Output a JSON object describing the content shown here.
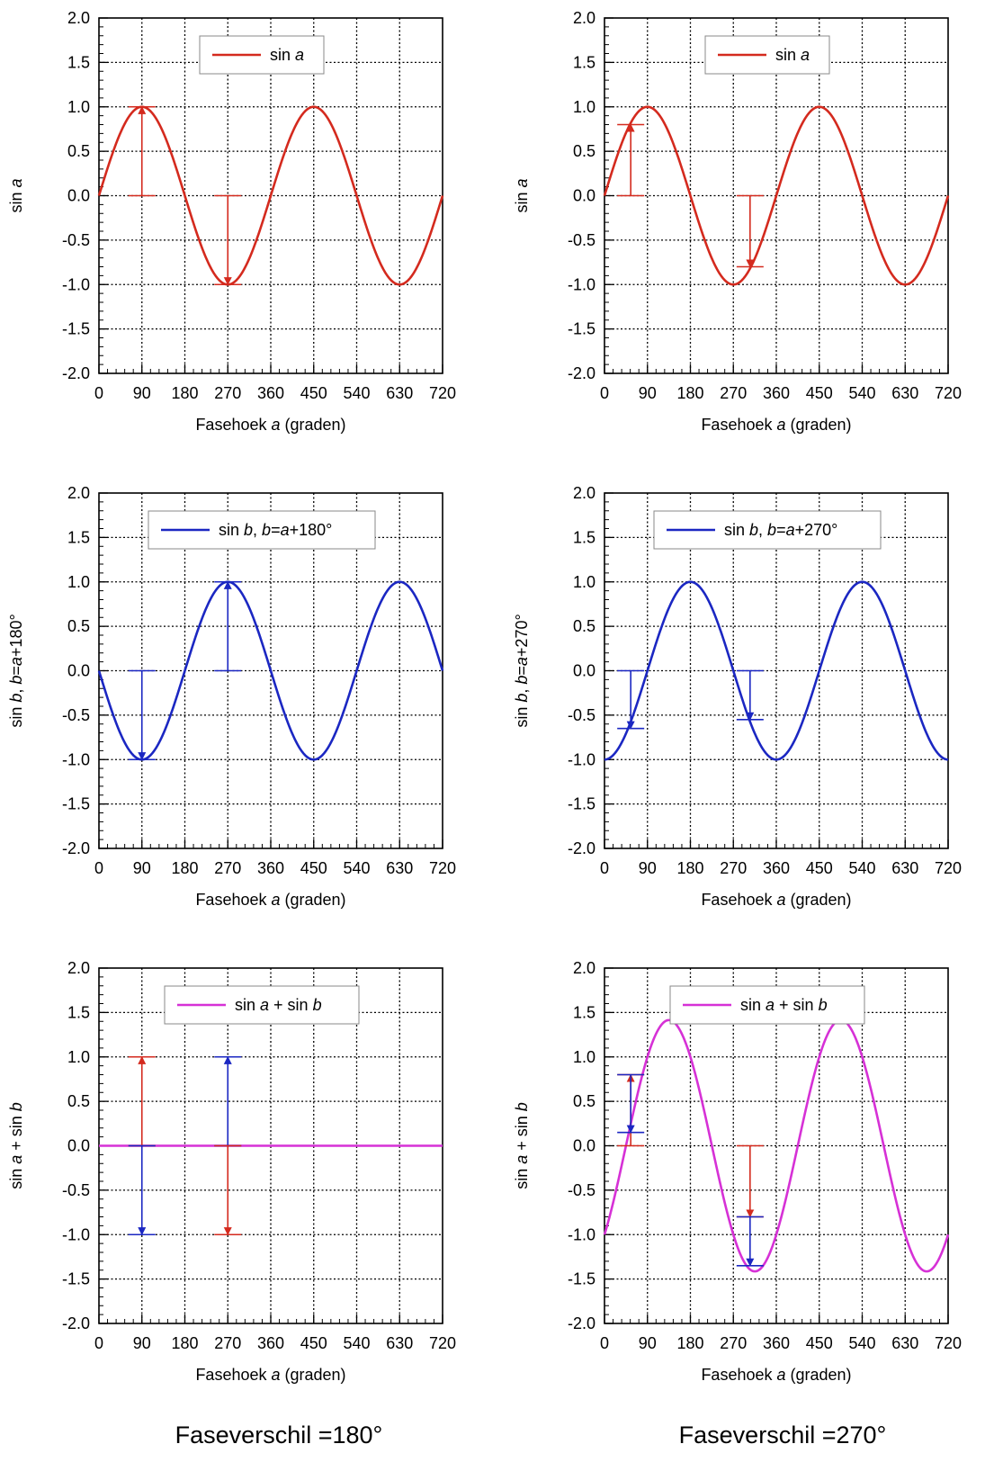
{
  "colors": {
    "red": "#d42a1e",
    "blue": "#1b27c2",
    "magenta": "#d631d6"
  },
  "captions": {
    "left": "Faseverschil =180°",
    "right": "Faseverschil =270°"
  },
  "chart_data": [
    {
      "type": "line",
      "panel": "top-left",
      "ylabel": "sin a",
      "xlabel": "Fasehoek a (graden)",
      "xlim": [
        0,
        720
      ],
      "ylim": [
        -2.0,
        2.0
      ],
      "xticks": [
        0,
        90,
        180,
        270,
        360,
        450,
        540,
        630,
        720
      ],
      "yticks": [
        -2.0,
        -1.5,
        -1.0,
        -0.5,
        0.0,
        0.5,
        1.0,
        1.5,
        2.0
      ],
      "grid": true,
      "legend": "top-center",
      "series": [
        {
          "name": "sin a",
          "color": "red",
          "function": "sin a",
          "x": [
            0,
            90,
            180,
            270,
            360,
            450,
            540,
            630,
            720
          ],
          "y": [
            0,
            1,
            0,
            -1,
            0,
            1,
            0,
            -1,
            0
          ]
        }
      ],
      "annotations": [
        {
          "type": "arrow",
          "x": 90,
          "y_from": 0,
          "y_to": 1,
          "color": "red"
        },
        {
          "type": "arrow",
          "x": 270,
          "y_from": 0,
          "y_to": -1,
          "color": "red"
        }
      ]
    },
    {
      "type": "line",
      "panel": "top-right",
      "ylabel": "sin a",
      "xlabel": "Fasehoek a (graden)",
      "xlim": [
        0,
        720
      ],
      "ylim": [
        -2.0,
        2.0
      ],
      "xticks": [
        0,
        90,
        180,
        270,
        360,
        450,
        540,
        630,
        720
      ],
      "yticks": [
        -2.0,
        -1.5,
        -1.0,
        -0.5,
        0.0,
        0.5,
        1.0,
        1.5,
        2.0
      ],
      "grid": true,
      "legend": "top-center",
      "series": [
        {
          "name": "sin a",
          "color": "red",
          "function": "sin a",
          "x": [
            0,
            90,
            180,
            270,
            360,
            450,
            540,
            630,
            720
          ],
          "y": [
            0,
            1,
            0,
            -1,
            0,
            1,
            0,
            -1,
            0
          ]
        }
      ],
      "annotations": [
        {
          "type": "arrow",
          "x": 55,
          "y_from": 0,
          "y_to": 0.8,
          "color": "red"
        },
        {
          "type": "arrow",
          "x": 305,
          "y_from": 0,
          "y_to": -0.8,
          "color": "red"
        }
      ]
    },
    {
      "type": "line",
      "panel": "middle-left",
      "ylabel": "sin b, b=a+180°",
      "xlabel": "Fasehoek a (graden)",
      "xlim": [
        0,
        720
      ],
      "ylim": [
        -2.0,
        2.0
      ],
      "xticks": [
        0,
        90,
        180,
        270,
        360,
        450,
        540,
        630,
        720
      ],
      "yticks": [
        -2.0,
        -1.5,
        -1.0,
        -0.5,
        0.0,
        0.5,
        1.0,
        1.5,
        2.0
      ],
      "grid": true,
      "legend": "top-center",
      "series": [
        {
          "name": "sin b, b=a+180°",
          "color": "blue",
          "function": "sin(a+180)",
          "x": [
            0,
            90,
            180,
            270,
            360,
            450,
            540,
            630,
            720
          ],
          "y": [
            0,
            -1,
            0,
            1,
            0,
            -1,
            0,
            1,
            0
          ]
        }
      ],
      "annotations": [
        {
          "type": "arrow",
          "x": 90,
          "y_from": 0,
          "y_to": -1,
          "color": "blue"
        },
        {
          "type": "arrow",
          "x": 270,
          "y_from": 0,
          "y_to": 1,
          "color": "blue"
        }
      ]
    },
    {
      "type": "line",
      "panel": "middle-right",
      "ylabel": "sin b, b=a+270°",
      "xlabel": "Fasehoek a (graden)",
      "xlim": [
        0,
        720
      ],
      "ylim": [
        -2.0,
        2.0
      ],
      "xticks": [
        0,
        90,
        180,
        270,
        360,
        450,
        540,
        630,
        720
      ],
      "yticks": [
        -2.0,
        -1.5,
        -1.0,
        -0.5,
        0.0,
        0.5,
        1.0,
        1.5,
        2.0
      ],
      "grid": true,
      "legend": "top-center",
      "series": [
        {
          "name": "sin b, b=a+270°",
          "color": "blue",
          "function": "sin(a+270)",
          "x": [
            0,
            90,
            180,
            270,
            360,
            450,
            540,
            630,
            720
          ],
          "y": [
            -1,
            0,
            1,
            0,
            -1,
            0,
            1,
            0,
            -1
          ]
        }
      ],
      "annotations": [
        {
          "type": "arrow",
          "x": 55,
          "y_from": 0,
          "y_to": -0.65,
          "color": "blue"
        },
        {
          "type": "arrow",
          "x": 305,
          "y_from": 0,
          "y_to": -0.55,
          "color": "blue"
        }
      ]
    },
    {
      "type": "line",
      "panel": "bottom-left",
      "ylabel": "sin a + sin b",
      "xlabel": "Fasehoek a (graden)",
      "xlim": [
        0,
        720
      ],
      "ylim": [
        -2.0,
        2.0
      ],
      "xticks": [
        0,
        90,
        180,
        270,
        360,
        450,
        540,
        630,
        720
      ],
      "yticks": [
        -2.0,
        -1.5,
        -1.0,
        -0.5,
        0.0,
        0.5,
        1.0,
        1.5,
        2.0
      ],
      "grid": true,
      "legend": "top-center",
      "series": [
        {
          "name": "sin a + sin b",
          "color": "magenta",
          "function": "sin a + sin(a+180)",
          "x": [
            0,
            720
          ],
          "y": [
            0,
            0
          ]
        }
      ],
      "annotations": [
        {
          "type": "arrow",
          "x": 90,
          "y_from": 0,
          "y_to": 1,
          "color": "red"
        },
        {
          "type": "arrow",
          "x": 90,
          "y_from": 0,
          "y_to": -1,
          "color": "blue"
        },
        {
          "type": "arrow",
          "x": 270,
          "y_from": 0,
          "y_to": 1,
          "color": "blue"
        },
        {
          "type": "arrow",
          "x": 270,
          "y_from": 0,
          "y_to": -1,
          "color": "red"
        }
      ]
    },
    {
      "type": "line",
      "panel": "bottom-right",
      "ylabel": "sin a + sin b",
      "xlabel": "Fasehoek a (graden)",
      "xlim": [
        0,
        720
      ],
      "ylim": [
        -2.0,
        2.0
      ],
      "xticks": [
        0,
        90,
        180,
        270,
        360,
        450,
        540,
        630,
        720
      ],
      "yticks": [
        -2.0,
        -1.5,
        -1.0,
        -0.5,
        0.0,
        0.5,
        1.0,
        1.5,
        2.0
      ],
      "grid": true,
      "legend": "top-center",
      "series": [
        {
          "name": "sin a + sin b",
          "color": "magenta",
          "function": "sin a + sin(a+270)",
          "x": [
            0,
            45,
            90,
            135,
            180,
            225,
            270,
            315,
            360,
            405,
            450,
            495,
            540,
            585,
            630,
            675,
            720
          ],
          "y": [
            -1,
            0,
            1,
            1.41,
            1,
            0,
            -1,
            -1.41,
            -1,
            0,
            1,
            1.41,
            1,
            0,
            -1,
            -1.41,
            -1
          ]
        }
      ],
      "annotations": [
        {
          "type": "arrow",
          "x": 55,
          "y_from": 0,
          "y_to": 0.8,
          "color": "red"
        },
        {
          "type": "arrow",
          "x": 55,
          "y_from": 0.8,
          "y_to": 0.15,
          "color": "blue"
        },
        {
          "type": "arrow",
          "x": 305,
          "y_from": 0,
          "y_to": -0.8,
          "color": "red"
        },
        {
          "type": "arrow",
          "x": 305,
          "y_from": -0.8,
          "y_to": -1.35,
          "color": "blue"
        }
      ]
    }
  ]
}
